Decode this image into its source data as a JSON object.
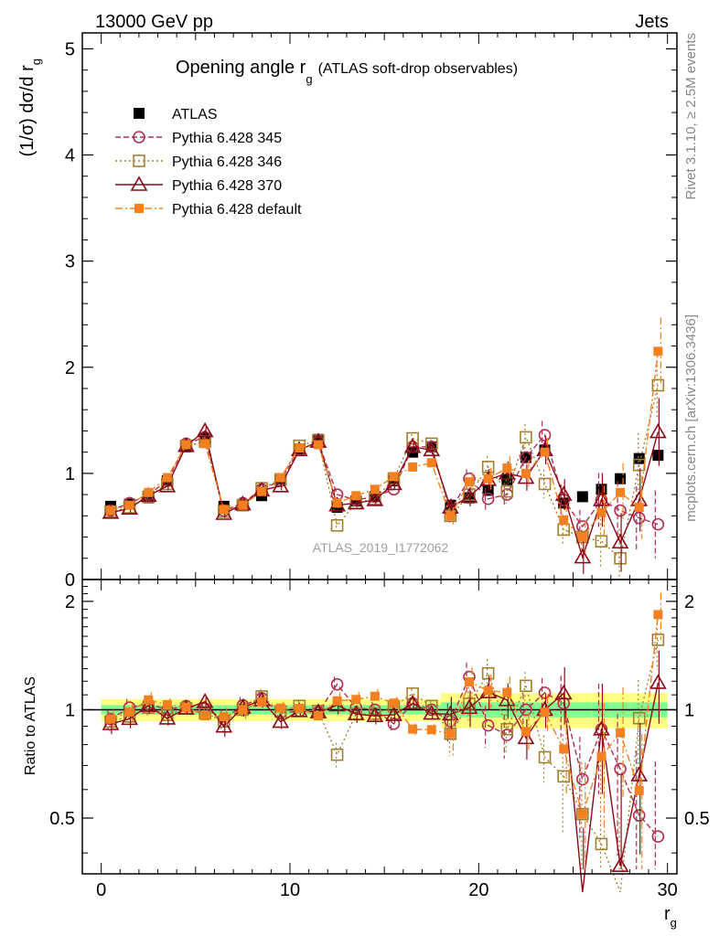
{
  "header": {
    "left": "13000 GeV pp",
    "right": "Jets"
  },
  "side": {
    "rivet": "Rivet 3.1.10, ≥ 2.5M events",
    "mcplots": "mcplots.cern.ch [arXiv:1306.3436]"
  },
  "colors": {
    "atlas": "#000000",
    "p345": "#b03050",
    "p346": "#a08030",
    "p370": "#8b0a1a",
    "pdef": "#f58020",
    "band_outer": "#ffff80",
    "band_inner": "#80ff90"
  },
  "chart_data": [
    {
      "type": "scatter",
      "title_main": "Opening angle r",
      "title_sub": "g",
      "title_paren": "(ATLAS soft-drop observables)",
      "ylabel": "(1/σ) dσ/d r",
      "ylabel_sub": "g",
      "xlabel": "r",
      "xlabel_sub": "g",
      "watermark": "ATLAS_2019_I1772062",
      "xlim": [
        -1,
        30.5
      ],
      "ylim": [
        0,
        5.15
      ],
      "yticks": [
        0,
        1,
        2,
        3,
        4,
        5
      ],
      "ytick_labels": [
        "0",
        "1",
        "2",
        "3",
        "4",
        "5"
      ],
      "legend": [
        "ATLAS",
        "Pythia 6.428 345",
        "Pythia 6.428 346",
        "Pythia 6.428 370",
        "Pythia 6.428 default"
      ],
      "x": [
        0.5,
        1.5,
        2.5,
        3.5,
        4.5,
        5.5,
        6.5,
        7.5,
        8.5,
        9.5,
        10.5,
        11.5,
        12.5,
        13.5,
        14.5,
        15.5,
        16.5,
        17.5,
        18.5,
        19.5,
        20.5,
        21.5,
        22.5,
        23.5,
        24.5,
        25.5,
        26.5,
        27.5,
        28.5,
        29.5
      ],
      "series": [
        {
          "name": "ATLAS",
          "values": [
            0.69,
            0.71,
            0.77,
            0.93,
            1.25,
            1.33,
            0.69,
            0.7,
            0.79,
            0.95,
            1.23,
            1.32,
            0.68,
            0.74,
            0.78,
            0.93,
            1.2,
            1.25,
            0.7,
            0.77,
            0.84,
            0.94,
            1.15,
            1.22,
            0.72,
            0.78,
            0.85,
            0.95,
            1.14,
            1.17
          ]
        },
        {
          "name": "Pythia 6.428 345",
          "values": [
            0.65,
            0.72,
            0.8,
            0.93,
            1.28,
            1.34,
            0.65,
            0.72,
            0.85,
            0.93,
            1.22,
            1.3,
            0.8,
            0.75,
            0.78,
            0.85,
            1.25,
            1.25,
            0.65,
            0.95,
            0.76,
            0.8,
            1.15,
            1.36,
            0.75,
            0.5,
            0.75,
            0.65,
            0.58,
            0.52
          ]
        },
        {
          "name": "Pythia 6.428 346",
          "values": [
            0.64,
            0.68,
            0.78,
            0.9,
            1.26,
            1.3,
            0.64,
            0.7,
            0.86,
            0.94,
            1.26,
            1.31,
            0.51,
            0.72,
            0.76,
            0.95,
            1.33,
            1.28,
            0.6,
            0.8,
            1.06,
            0.83,
            1.34,
            0.9,
            0.47,
            0.4,
            0.36,
            0.2,
            1.08,
            1.83
          ]
        },
        {
          "name": "Pythia 6.428 370",
          "values": [
            0.63,
            0.67,
            0.79,
            0.88,
            1.26,
            1.4,
            0.62,
            0.71,
            0.84,
            0.88,
            1.22,
            1.3,
            0.7,
            0.72,
            0.75,
            0.9,
            1.25,
            1.22,
            0.68,
            0.78,
            0.94,
            1.0,
            0.96,
            1.22,
            0.8,
            0.21,
            0.75,
            0.35,
            0.75,
            1.39
          ]
        },
        {
          "name": "Pythia 6.428 default",
          "values": [
            0.65,
            0.7,
            0.82,
            0.96,
            1.27,
            1.28,
            0.66,
            0.7,
            0.83,
            0.96,
            1.24,
            1.27,
            0.72,
            0.79,
            0.85,
            0.97,
            1.06,
            1.1,
            0.6,
            0.92,
            0.95,
            1.05,
            1.0,
            1.2,
            0.56,
            0.4,
            0.63,
            0.82,
            0.68,
            2.15
          ]
        }
      ]
    },
    {
      "type": "scatter",
      "ylabel": "Ratio to ATLAS",
      "xlim": [
        -1,
        30.5
      ],
      "ylim": [
        0.35,
        2.3
      ],
      "yticks": [
        0.5,
        1,
        2
      ],
      "ytick_labels": [
        "0.5",
        "1",
        "2"
      ],
      "xticks": [
        0,
        10,
        20,
        30
      ],
      "xtick_labels": [
        "0",
        "10",
        "20",
        "30"
      ],
      "reference": 1,
      "band_inner": 0.03,
      "band_outer": 0.07
    }
  ]
}
